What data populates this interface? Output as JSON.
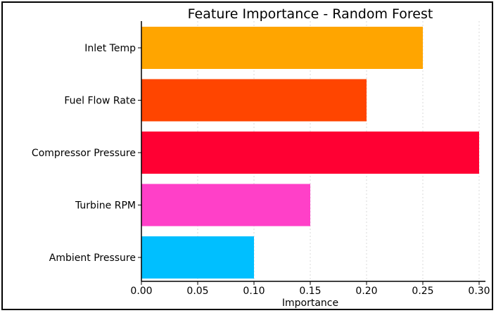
{
  "chart_data": {
    "type": "bar",
    "orientation": "horizontal",
    "title": "Feature Importance - Random Forest",
    "xlabel": "Importance",
    "ylabel": "",
    "categories": [
      "Inlet Temp",
      "Fuel Flow Rate",
      "Compressor Pressure",
      "Turbine RPM",
      "Ambient Pressure"
    ],
    "values": [
      0.25,
      0.2,
      0.3,
      0.15,
      0.1
    ],
    "colors": [
      "#FFA500",
      "#FF4500",
      "#FF0033",
      "#FF40C8",
      "#00BFFF"
    ],
    "xlim": [
      0,
      0.3
    ],
    "xticks": [
      "0.00",
      "0.05",
      "0.10",
      "0.15",
      "0.20",
      "0.25",
      "0.30"
    ],
    "grid": "x-dashed"
  }
}
